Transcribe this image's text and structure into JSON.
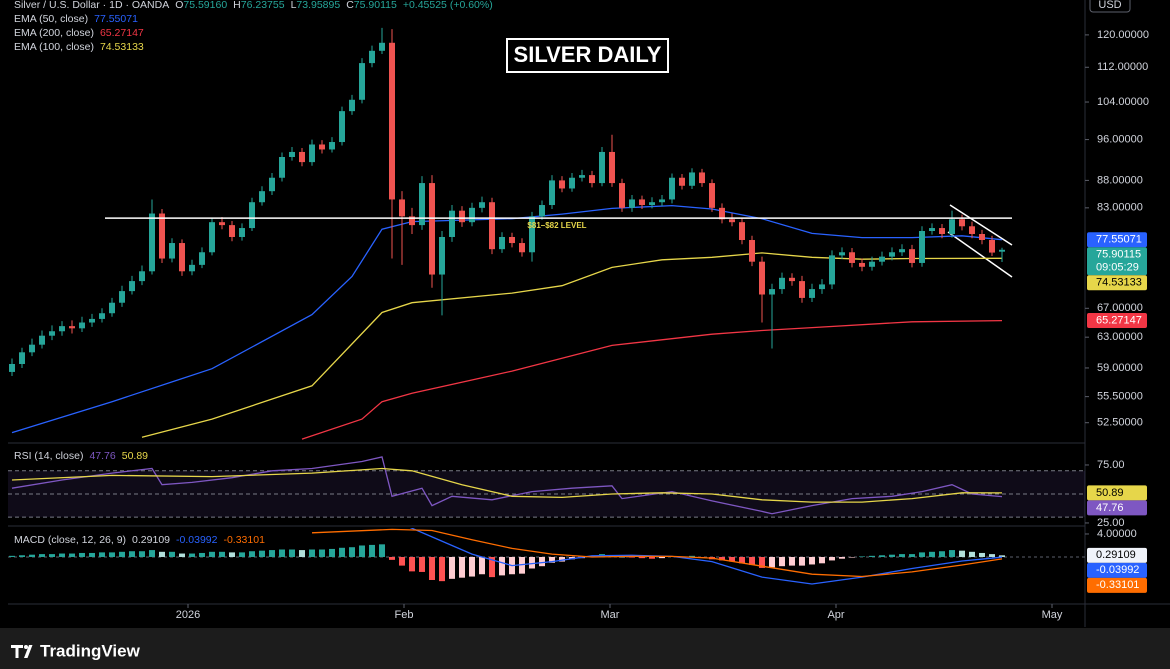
{
  "header": {
    "symbol": "Silver / U.S. Dollar · 1D · OANDA",
    "ohlc": [
      {
        "label": "O",
        "value": "75.59160"
      },
      {
        "label": "H",
        "value": "76.23755"
      },
      {
        "label": "L",
        "value": "73.95895"
      },
      {
        "label": "C",
        "value": "75.90115"
      }
    ],
    "change": "+0.45525 (+0.60%)"
  },
  "currency": "USD",
  "title_box": "SILVER DAILY",
  "footer": {
    "brand": "TradingView"
  },
  "chart_data": [
    {
      "type": "candlestick",
      "log_scale": true,
      "grid": false,
      "up_color": "#26a69a",
      "down_color": "#ef5350",
      "xlim": [
        -0.4,
        107.3
      ],
      "xticks": [
        {
          "value": 17.6,
          "label": "2026"
        },
        {
          "value": 39.2,
          "label": "Feb"
        },
        {
          "value": 59.8,
          "label": "Mar"
        },
        {
          "value": 82.4,
          "label": "Apr"
        },
        {
          "value": 104,
          "label": "May"
        }
      ],
      "ylim": [
        50.6,
        125.2
      ],
      "yticks": [
        {
          "value": 120,
          "label": "120.00000"
        },
        {
          "value": 112,
          "label": "112.00000"
        },
        {
          "value": 104,
          "label": "104.00000"
        },
        {
          "value": 96,
          "label": "96.00000"
        },
        {
          "value": 88,
          "label": "88.00000"
        },
        {
          "value": 83,
          "label": "83.00000"
        },
        {
          "value": 67,
          "label": "67.00000"
        },
        {
          "value": 63,
          "label": "63.00000"
        },
        {
          "value": 59,
          "label": "59.00000"
        },
        {
          "value": 55.5,
          "label": "55.50000"
        },
        {
          "value": 52.5,
          "label": "52.50000"
        }
      ],
      "candles": [
        [
          58.5,
          60.2,
          58.0,
          59.5
        ],
        [
          59.5,
          61.6,
          59.0,
          61.0
        ],
        [
          61.0,
          62.8,
          60.5,
          62.0
        ],
        [
          62.0,
          63.9,
          61.5,
          63.2
        ],
        [
          63.2,
          64.6,
          62.6,
          63.8
        ],
        [
          63.8,
          65.2,
          63.2,
          64.5
        ],
        [
          64.5,
          65.3,
          63.5,
          64.2
        ],
        [
          64.2,
          65.8,
          63.7,
          65.0
        ],
        [
          65.0,
          66.2,
          64.4,
          65.5
        ],
        [
          65.5,
          67.0,
          65.0,
          66.3
        ],
        [
          66.3,
          68.5,
          65.8,
          67.8
        ],
        [
          67.8,
          70.3,
          67.2,
          69.5
        ],
        [
          69.5,
          71.8,
          69.0,
          71.0
        ],
        [
          71.0,
          73.4,
          70.4,
          72.5
        ],
        [
          72.5,
          84.5,
          72.0,
          82.0
        ],
        [
          82.0,
          82.8,
          73.8,
          74.5
        ],
        [
          74.5,
          77.8,
          73.9,
          77.0
        ],
        [
          77.0,
          77.6,
          71.8,
          72.5
        ],
        [
          72.5,
          74.3,
          71.9,
          73.5
        ],
        [
          73.5,
          76.3,
          73.0,
          75.5
        ],
        [
          75.5,
          81.3,
          75.0,
          80.5
        ],
        [
          80.5,
          81.4,
          79.3,
          80.0
        ],
        [
          80.0,
          80.7,
          77.3,
          78.0
        ],
        [
          78.0,
          80.3,
          77.4,
          79.5
        ],
        [
          79.5,
          84.8,
          79.0,
          84.0
        ],
        [
          84.0,
          86.9,
          83.4,
          86.0
        ],
        [
          86.0,
          89.4,
          85.3,
          88.5
        ],
        [
          88.5,
          93.4,
          87.8,
          92.5
        ],
        [
          92.5,
          94.5,
          91.8,
          93.5
        ],
        [
          93.5,
          94.3,
          90.7,
          91.5
        ],
        [
          91.5,
          96.0,
          90.8,
          95.0
        ],
        [
          95.0,
          95.9,
          93.2,
          94.0
        ],
        [
          94.0,
          96.5,
          93.4,
          95.5
        ],
        [
          95.5,
          103.0,
          94.8,
          102.0
        ],
        [
          102.0,
          105.6,
          101.2,
          104.5
        ],
        [
          104.5,
          114.2,
          103.7,
          113.0
        ],
        [
          113.0,
          117.3,
          112.0,
          116.0
        ],
        [
          116.0,
          121.8,
          115.2,
          118.0
        ],
        [
          118.0,
          121.5,
          74.5,
          84.5
        ],
        [
          84.5,
          86.0,
          73.5,
          81.5
        ],
        [
          81.5,
          83.0,
          78.5,
          80.0
        ],
        [
          80.0,
          88.8,
          79.2,
          87.5
        ],
        [
          87.5,
          89.0,
          70.0,
          72.0
        ],
        [
          72.0,
          79.0,
          66.0,
          78.0
        ],
        [
          78.0,
          83.5,
          77.2,
          82.5
        ],
        [
          82.5,
          83.3,
          79.7,
          80.5
        ],
        [
          80.5,
          83.9,
          79.8,
          83.0
        ],
        [
          83.0,
          85.0,
          82.2,
          84.0
        ],
        [
          84.0,
          84.8,
          75.2,
          76.0
        ],
        [
          76.0,
          78.8,
          75.4,
          78.0
        ],
        [
          78.0,
          78.7,
          76.3,
          77.0
        ],
        [
          77.0,
          77.8,
          74.8,
          75.5
        ],
        [
          75.5,
          82.3,
          74.0,
          81.5
        ],
        [
          81.5,
          84.3,
          80.9,
          83.5
        ],
        [
          83.5,
          89.0,
          82.8,
          88.0
        ],
        [
          88.0,
          88.8,
          85.8,
          86.5
        ],
        [
          86.5,
          89.4,
          85.9,
          88.5
        ],
        [
          88.5,
          90.0,
          87.8,
          89.0
        ],
        [
          89.0,
          89.8,
          86.7,
          87.5
        ],
        [
          87.5,
          94.5,
          86.9,
          93.5
        ],
        [
          93.5,
          97.0,
          86.8,
          87.5
        ],
        [
          87.5,
          88.3,
          82.3,
          83.0
        ],
        [
          83.0,
          85.3,
          82.3,
          84.5
        ],
        [
          84.5,
          85.2,
          82.8,
          83.5
        ],
        [
          83.5,
          84.9,
          82.9,
          84.0
        ],
        [
          84.0,
          85.3,
          83.3,
          84.5
        ],
        [
          84.5,
          89.3,
          83.8,
          88.5
        ],
        [
          88.5,
          89.2,
          86.3,
          87.0
        ],
        [
          87.0,
          90.3,
          86.4,
          89.5
        ],
        [
          89.5,
          90.2,
          86.8,
          87.5
        ],
        [
          87.5,
          88.2,
          82.3,
          83.0
        ],
        [
          83.0,
          83.8,
          80.3,
          81.0
        ],
        [
          81.0,
          82.0,
          79.8,
          80.5
        ],
        [
          80.5,
          81.2,
          76.8,
          77.5
        ],
        [
          77.5,
          78.2,
          73.3,
          74.0
        ],
        [
          74.0,
          74.8,
          65.0,
          69.0
        ],
        [
          69.0,
          70.6,
          61.5,
          69.8
        ],
        [
          69.8,
          72.3,
          69.1,
          71.5
        ],
        [
          71.5,
          72.2,
          70.3,
          71.0
        ],
        [
          71.0,
          71.8,
          67.8,
          68.5
        ],
        [
          68.5,
          70.6,
          67.9,
          69.8
        ],
        [
          69.8,
          71.3,
          69.1,
          70.5
        ],
        [
          70.5,
          75.8,
          69.8,
          75.0
        ],
        [
          75.0,
          76.3,
          74.4,
          75.5
        ],
        [
          75.5,
          76.2,
          73.1,
          73.8
        ],
        [
          73.8,
          74.5,
          72.5,
          73.2
        ],
        [
          73.2,
          74.8,
          72.6,
          74.0
        ],
        [
          74.0,
          75.6,
          73.4,
          74.8
        ],
        [
          74.8,
          76.3,
          74.2,
          75.5
        ],
        [
          75.5,
          76.8,
          74.9,
          76.0
        ],
        [
          76.0,
          76.7,
          73.1,
          73.8
        ],
        [
          73.8,
          79.8,
          73.2,
          79.0
        ],
        [
          79.0,
          80.3,
          78.4,
          79.5
        ],
        [
          79.5,
          80.2,
          77.8,
          78.5
        ],
        [
          78.5,
          82.5,
          77.9,
          81.0
        ],
        [
          81.0,
          81.8,
          79.1,
          79.8
        ],
        [
          79.8,
          80.6,
          77.8,
          78.5
        ],
        [
          78.5,
          79.2,
          76.8,
          77.5
        ],
        [
          77.5,
          78.2,
          74.9,
          75.45
        ],
        [
          75.5916,
          76.23755,
          73.95895,
          75.90115
        ]
      ],
      "countdown": "09:05:29",
      "level": {
        "value": 81.2,
        "label": "$81–$82 LEVEL"
      },
      "series": [
        {
          "name": "EMA (50, close)",
          "color": "#2962ff",
          "x": [
            0,
            10,
            20,
            30,
            34,
            37,
            40,
            50,
            55,
            60,
            66,
            70,
            75,
            80,
            85,
            90,
            95,
            99
          ],
          "values": [
            51.4,
            54.9,
            58.9,
            66.1,
            71.7,
            79.3,
            80.6,
            81.1,
            81.9,
            82.9,
            83.4,
            82.8,
            81.1,
            78.6,
            77.9,
            77.9,
            78.2,
            77.55071
          ]
        },
        {
          "name": "EMA (200, close)",
          "color": "#f23645",
          "x": [
            29,
            35,
            37,
            40,
            50,
            60,
            70,
            75,
            80,
            90,
            99
          ],
          "values": [
            50.7,
            52.9,
            54.9,
            55.9,
            58.6,
            61.9,
            63.4,
            63.9,
            64.3,
            65.1,
            65.27147
          ]
        },
        {
          "name": "EMA (100, close)",
          "color": "#e6d64a",
          "x": [
            13,
            20,
            30,
            37,
            40,
            50,
            55,
            60,
            65,
            70,
            75,
            80,
            85,
            90,
            99
          ],
          "values": [
            50.9,
            52.9,
            56.8,
            66.4,
            67.8,
            69.2,
            70.3,
            73.1,
            74.3,
            74.7,
            75.4,
            74.7,
            74.4,
            74.5,
            74.53133
          ]
        }
      ]
    },
    {
      "type": "line",
      "title": "RSI (14, close)",
      "ylim": [
        24.1,
        90.5
      ],
      "yticks": [
        {
          "value": 75,
          "label": "75.00"
        },
        {
          "value": 25,
          "label": "25.00"
        }
      ],
      "bands": [
        70,
        50,
        30
      ],
      "band_color": "#7e57c2",
      "series": [
        {
          "color": "#7e57c2",
          "x": [
            0,
            5,
            10,
            14,
            15,
            18,
            22,
            26,
            30,
            35,
            37,
            38,
            41,
            42,
            44,
            48,
            52,
            56,
            60,
            61,
            66,
            70,
            75,
            76,
            80,
            84,
            88,
            91,
            94,
            96,
            99
          ],
          "values": [
            55,
            62,
            68,
            72,
            58,
            60,
            64,
            70,
            72,
            78,
            82,
            48,
            55,
            40,
            48,
            45,
            52,
            55,
            57,
            46,
            52,
            44,
            35,
            33,
            40,
            46,
            48,
            52,
            58,
            50,
            47.76
          ]
        },
        {
          "color": "#e6d64a",
          "x": [
            0,
            10,
            20,
            30,
            37,
            40,
            45,
            50,
            55,
            60,
            65,
            70,
            75,
            80,
            85,
            90,
            95,
            99
          ],
          "values": [
            62,
            66,
            65,
            68,
            72,
            70,
            58,
            48,
            47,
            50,
            51,
            50,
            45,
            43,
            43,
            46,
            51,
            50.89
          ]
        }
      ]
    },
    {
      "type": "macd",
      "title": "MACD (close, 12, 26, 9)",
      "ylim": [
        -8,
        5.04
      ],
      "yticks": [
        {
          "value": 4,
          "label": "4.00000"
        }
      ],
      "histogram": {
        "colors": [
          "#26a69a",
          "#b2dfdb",
          "#ffcdd2",
          "#ff5252"
        ],
        "values": [
          0.2,
          0.3,
          0.4,
          0.5,
          0.5,
          0.6,
          0.6,
          0.7,
          0.7,
          0.8,
          0.8,
          0.9,
          1.0,
          1.0,
          1.2,
          0.9,
          0.9,
          0.6,
          0.6,
          0.7,
          0.9,
          0.9,
          0.8,
          0.8,
          1.0,
          1.1,
          1.2,
          1.3,
          1.3,
          1.2,
          1.3,
          1.3,
          1.4,
          1.6,
          1.7,
          2.0,
          2.1,
          2.2,
          -0.5,
          -1.5,
          -2.5,
          -2.6,
          -4.0,
          -4.2,
          -3.8,
          -3.6,
          -3.4,
          -3.0,
          -3.5,
          -3.2,
          -3.0,
          -2.9,
          -2.0,
          -1.6,
          -1.0,
          -0.8,
          -0.4,
          -0.2,
          0.2,
          0.5,
          0.3,
          0.0,
          -0.1,
          -0.2,
          -0.3,
          -0.2,
          0.1,
          0.0,
          0.2,
          -0.1,
          -0.4,
          -0.6,
          -0.8,
          -1.1,
          -1.4,
          -1.9,
          -1.8,
          -1.6,
          -1.5,
          -1.5,
          -1.3,
          -1.1,
          -0.6,
          -0.3,
          -0.1,
          0.1,
          0.2,
          0.3,
          0.4,
          0.5,
          0.5,
          0.8,
          0.9,
          1.0,
          1.2,
          1.1,
          0.9,
          0.7,
          0.5,
          0.29109
        ]
      },
      "series": [
        {
          "color": "#2962ff",
          "x": [
            30,
            38,
            42,
            46,
            50,
            54,
            58,
            62,
            66,
            70,
            75,
            80,
            85,
            90,
            95,
            99
          ],
          "values": [
            5.5,
            6.5,
            3.5,
            0.5,
            -1.5,
            -0.8,
            0.2,
            0.3,
            0.1,
            -0.8,
            -3.5,
            -4.7,
            -3.5,
            -2.0,
            -0.7,
            -0.03992
          ]
        },
        {
          "color": "#ff6d00",
          "x": [
            30,
            38,
            42,
            46,
            50,
            54,
            58,
            62,
            66,
            70,
            75,
            80,
            85,
            90,
            95,
            99
          ],
          "values": [
            4.2,
            4.8,
            4.6,
            3.0,
            1.5,
            0.5,
            0.0,
            0.1,
            0.1,
            -0.2,
            -1.6,
            -3.0,
            -3.4,
            -2.6,
            -1.4,
            -0.33101
          ]
        }
      ]
    }
  ]
}
